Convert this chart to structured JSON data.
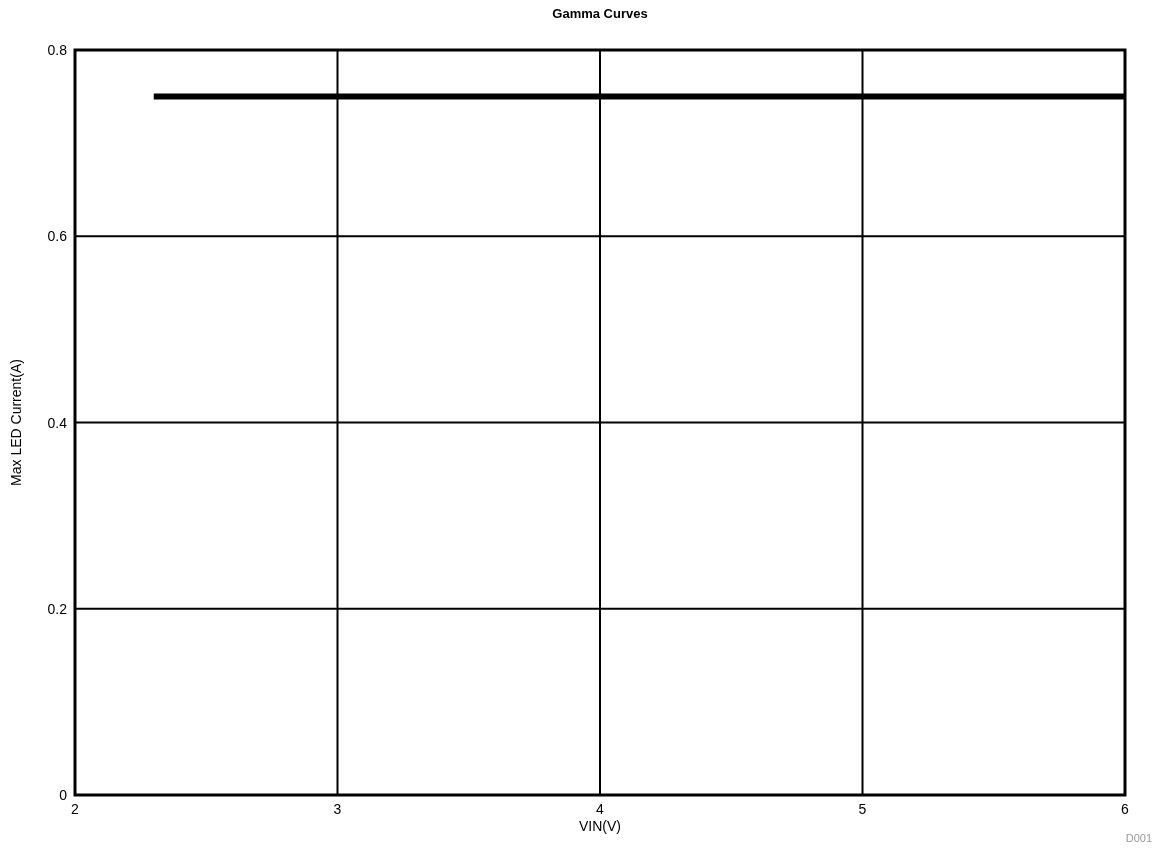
{
  "chart_data": {
    "type": "line",
    "title": "Gamma Curves",
    "xlabel": "VIN(V)",
    "ylabel": "Max LED Current(A)",
    "annotations": [
      "D001"
    ],
    "x": [
      2.3,
      6
    ],
    "series": [
      {
        "color": "#000000",
        "values": [
          0.75,
          0.75
        ]
      }
    ],
    "xlim": [
      2,
      6
    ],
    "xticks": [
      2,
      3,
      4,
      5,
      6
    ],
    "ylim": [
      0,
      0.8
    ],
    "yticks": [
      0,
      0.2,
      0.4,
      0.6,
      0.8
    ],
    "grid": true,
    "line_style": "solid",
    "marker": "none"
  }
}
